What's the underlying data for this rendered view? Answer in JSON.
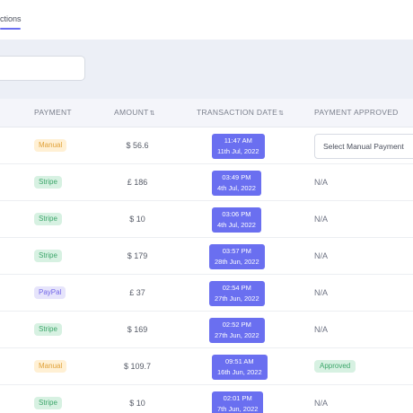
{
  "tabs": {
    "active_label": "ctions"
  },
  "search": {
    "value": ""
  },
  "table": {
    "headers": {
      "payment": "PAYMENT",
      "amount": "AMOUNT",
      "transaction_date": "TRANSACTION DATE",
      "payment_approved": "PAYMENT APPROVED",
      "sort_icon": "⇅"
    },
    "rows": [
      {
        "payment": "Manual",
        "amount": "$ 56.6",
        "time": "11:47 AM",
        "date": "11th Jul, 2022",
        "approved": "Select Manual Payment"
      },
      {
        "payment": "Stripe",
        "amount": "£ 186",
        "time": "03:49 PM",
        "date": "4th Jul, 2022",
        "approved": "N/A"
      },
      {
        "payment": "Stripe",
        "amount": "$ 10",
        "time": "03:06 PM",
        "date": "4th Jul, 2022",
        "approved": "N/A"
      },
      {
        "payment": "Stripe",
        "amount": "$ 179",
        "time": "03:57 PM",
        "date": "28th Jun, 2022",
        "approved": "N/A"
      },
      {
        "payment": "PayPal",
        "amount": "£ 37",
        "time": "02:54 PM",
        "date": "27th Jun, 2022",
        "approved": "N/A"
      },
      {
        "payment": "Stripe",
        "amount": "$ 169",
        "time": "02:52 PM",
        "date": "27th Jun, 2022",
        "approved": "N/A"
      },
      {
        "payment": "Manual",
        "amount": "$ 109.7",
        "time": "09:51 AM",
        "date": "16th Jun, 2022",
        "approved": "Approved"
      },
      {
        "payment": "Stripe",
        "amount": "$ 10",
        "time": "02:01 PM",
        "date": "7th Jun, 2022",
        "approved": "N/A"
      }
    ]
  },
  "colors": {
    "accent": "#6a6ff0",
    "manual_badge_bg": "#fff0d4",
    "stripe_badge_bg": "#d7f1e2",
    "paypal_badge_bg": "#e6e4fb"
  }
}
